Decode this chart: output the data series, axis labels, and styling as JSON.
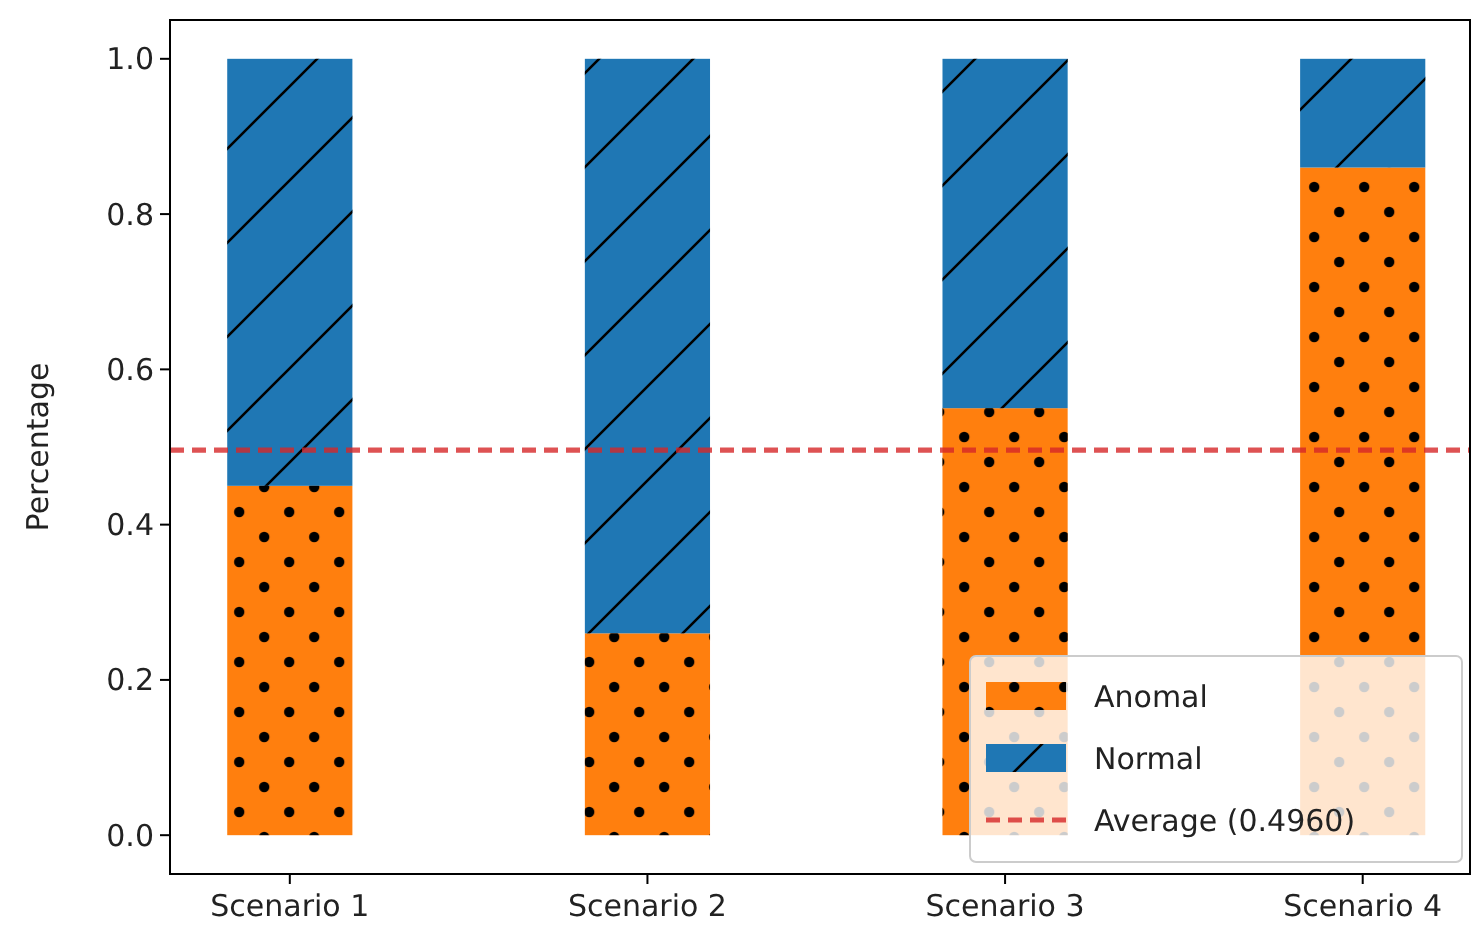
{
  "chart_data": {
    "type": "bar",
    "stacked": true,
    "ylabel": "Percentage",
    "categories": [
      "Scenario 1",
      "Scenario 2",
      "Scenario 3",
      "Scenario 4"
    ],
    "series": [
      {
        "name": "Anomal",
        "color": "#ff7f0e",
        "values": [
          0.45,
          0.26,
          0.55,
          0.86
        ]
      },
      {
        "name": "Normal",
        "color": "#1f77b4",
        "values": [
          0.55,
          0.74,
          0.45,
          0.14
        ]
      }
    ],
    "ylim": [
      -0.05,
      1.05
    ],
    "yticks": [
      {
        "value": 0,
        "label": "0.0"
      },
      {
        "value": 0.2,
        "label": "0.2"
      },
      {
        "value": 0.4,
        "label": "0.4"
      },
      {
        "value": 0.6,
        "label": "0.6"
      },
      {
        "value": 0.8,
        "label": "0.8"
      },
      {
        "value": 1,
        "label": "1.0"
      }
    ],
    "ref_lines": [
      {
        "axis": "y",
        "value": 0.496,
        "label": "Average (0.4960)",
        "color": "#d62728",
        "line_style": "dashed"
      }
    ],
    "legend": "bottom right",
    "grid": false
  }
}
